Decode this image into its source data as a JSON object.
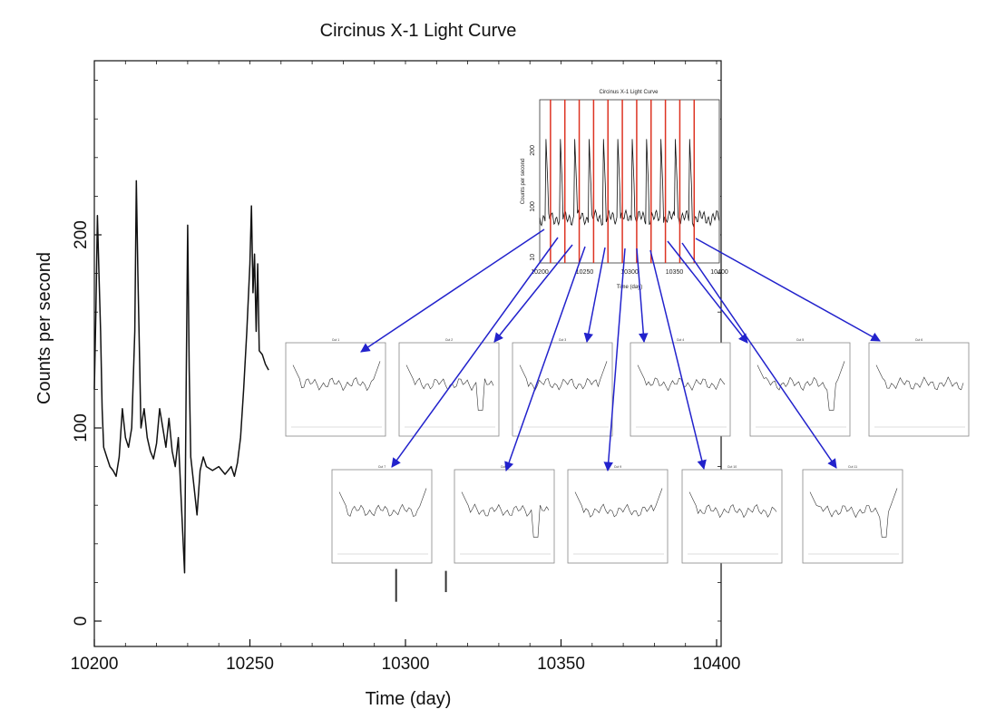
{
  "chart_data": [
    {
      "id": "main",
      "type": "line",
      "title": "Circinus X-1 Light Curve",
      "xlabel": "Time (day)",
      "ylabel": "Counts per second",
      "xlim": [
        10200,
        10400
      ],
      "ylim": [
        0,
        290
      ],
      "x_ticks": [
        10200,
        10250,
        10300,
        10350,
        10400
      ],
      "y_ticks": [
        0,
        100,
        200
      ],
      "grid": false,
      "series": [
        {
          "x": [
            10200,
            10200.5,
            10201,
            10201.5,
            10202,
            10202.5,
            10203,
            10204,
            10205,
            10206,
            10207,
            10208,
            10209,
            10210,
            10211,
            10212,
            10213,
            10213.5,
            10214,
            10215,
            10216,
            10217,
            10218,
            10219,
            10220,
            10221,
            10222,
            10223,
            10224,
            10225,
            10226,
            10227,
            10228,
            10229,
            10229.5,
            10230,
            10230.5,
            10231,
            10232,
            10233,
            10234,
            10235,
            10236,
            10238,
            10240,
            10242,
            10244,
            10245,
            10246,
            10247,
            10248,
            10249,
            10250,
            10250.5,
            10251,
            10251.5,
            10252,
            10252.5,
            10253,
            10254,
            10255,
            10256
          ],
          "values": [
            120,
            160,
            210,
            180,
            150,
            110,
            90,
            85,
            80,
            78,
            75,
            85,
            110,
            95,
            90,
            100,
            150,
            228,
            180,
            100,
            110,
            95,
            88,
            84,
            92,
            110,
            100,
            90,
            105,
            88,
            80,
            95,
            60,
            25,
            120,
            205,
            130,
            85,
            70,
            55,
            78,
            85,
            80,
            78,
            80,
            76,
            80,
            75,
            82,
            95,
            120,
            150,
            185,
            215,
            170,
            190,
            150,
            185,
            140,
            138,
            133,
            130
          ]
        }
      ],
      "extra_marks": [
        {
          "x": 10297,
          "y_from": 10,
          "y_to": 27
        },
        {
          "x": 10313,
          "y_from": 15,
          "y_to": 26
        }
      ]
    },
    {
      "id": "inset",
      "type": "line",
      "title": "Circinus X-1 Light Curve",
      "xlabel": "Time (day)",
      "ylabel": "Counts per second",
      "xlim": [
        10200,
        10400
      ],
      "ylim": [
        0,
        290
      ],
      "x_ticks": [
        10200,
        10250,
        10300,
        10350,
        10400
      ],
      "y_tick_labels": [
        "10",
        "100",
        "200"
      ],
      "cut_markers_x": [
        10212,
        10228,
        10244,
        10260,
        10276,
        10292,
        10308,
        10324,
        10340,
        10356,
        10372
      ],
      "cut_marker_color": "#dd3322"
    }
  ],
  "segments": {
    "count": 11,
    "arrow_color": "#2222cc",
    "title_labels": [
      "Cut 1",
      "Cut 2",
      "Cut 3",
      "Cut 4",
      "Cut 5",
      "Cut 6",
      "Cut 7",
      "Cut 8",
      "Cut 9",
      "Cut 10",
      "Cut 11"
    ]
  },
  "colors": {
    "line": "#111111",
    "axis": "#111111",
    "cut_marker": "#dd3322",
    "arrow": "#2222cc"
  }
}
